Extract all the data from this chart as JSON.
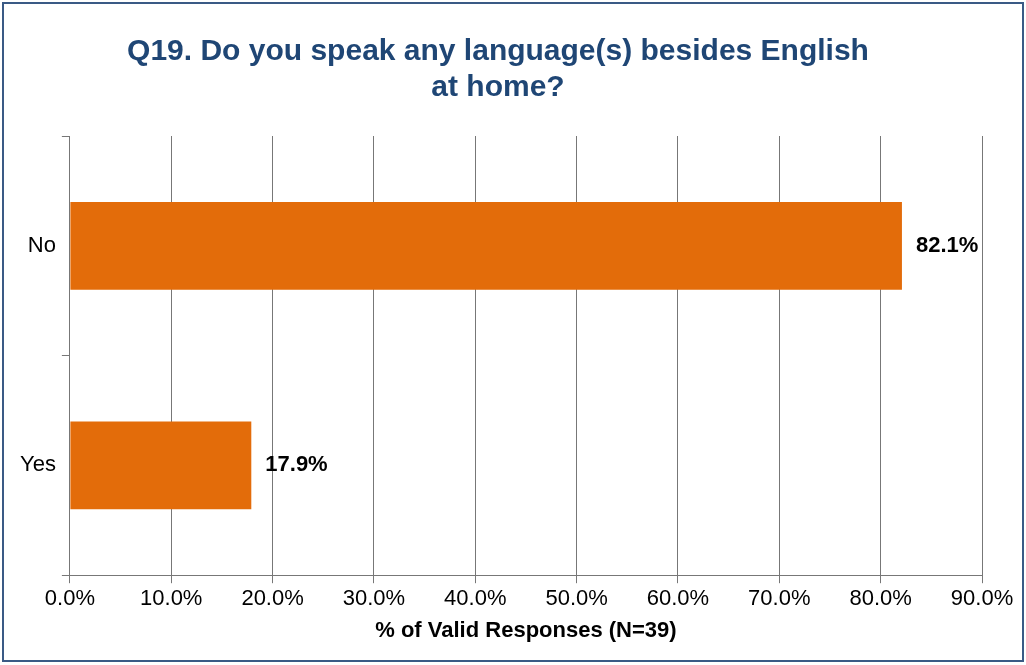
{
  "chart_data": {
    "type": "bar",
    "orientation": "horizontal",
    "title": "Q19. Do you speak any language(s) besides English at home?",
    "xlabel": "% of Valid Responses (N=39)",
    "categories": [
      "No",
      "Yes"
    ],
    "values": [
      82.1,
      17.9
    ],
    "color": "#e36c0a",
    "value_labels": [
      "82.1%",
      "17.9%"
    ],
    "xlim": [
      0,
      90
    ],
    "xticks": [
      {
        "value": 0,
        "label": "0.0%"
      },
      {
        "value": 10,
        "label": "10.0%"
      },
      {
        "value": 20,
        "label": "20.0%"
      },
      {
        "value": 30,
        "label": "30.0%"
      },
      {
        "value": 40,
        "label": "40.0%"
      },
      {
        "value": 50,
        "label": "50.0%"
      },
      {
        "value": 60,
        "label": "60.0%"
      },
      {
        "value": 70,
        "label": "70.0%"
      },
      {
        "value": 80,
        "label": "80.0%"
      },
      {
        "value": 90,
        "label": "90.0%"
      }
    ],
    "grid": "x",
    "legend": false
  }
}
